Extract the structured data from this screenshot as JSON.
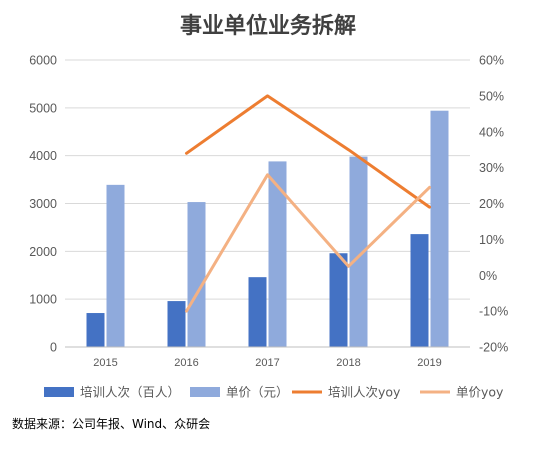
{
  "chart_data": {
    "type": "bar",
    "title": "事业单位业务拆解",
    "categories": [
      "2015",
      "2016",
      "2017",
      "2018",
      "2019"
    ],
    "xlabel": "",
    "ylabel": "",
    "ylim": [
      0,
      6000
    ],
    "yticks": [
      "0",
      "1000",
      "2000",
      "3000",
      "4000",
      "5000",
      "6000"
    ],
    "y2lim": [
      -20,
      60
    ],
    "y2ticks": [
      "-20%",
      "-10%",
      "0%",
      "10%",
      "20%",
      "30%",
      "40%",
      "50%",
      "60%"
    ],
    "grid": true,
    "legend_position": "bottom",
    "series": [
      {
        "name": "培训人次（百人）",
        "type": "bar",
        "axis": "left",
        "color": "#4472C4",
        "values": [
          710,
          960,
          1460,
          1960,
          2360
        ]
      },
      {
        "name": "单价（元）",
        "type": "bar",
        "axis": "left",
        "color": "#8FAADC",
        "values": [
          3390,
          3030,
          3880,
          3980,
          4940
        ]
      },
      {
        "name": "培训人次yoy",
        "type": "line",
        "axis": "right",
        "color": "#ED7D31",
        "values": [
          null,
          34,
          50,
          35,
          19
        ]
      },
      {
        "name": "单价yoy",
        "type": "line",
        "axis": "right",
        "color": "#F4B183",
        "values": [
          null,
          -10,
          28,
          2.5,
          24.5
        ]
      }
    ]
  },
  "source_note": "数据来源：公司年报、Wind、众研会"
}
